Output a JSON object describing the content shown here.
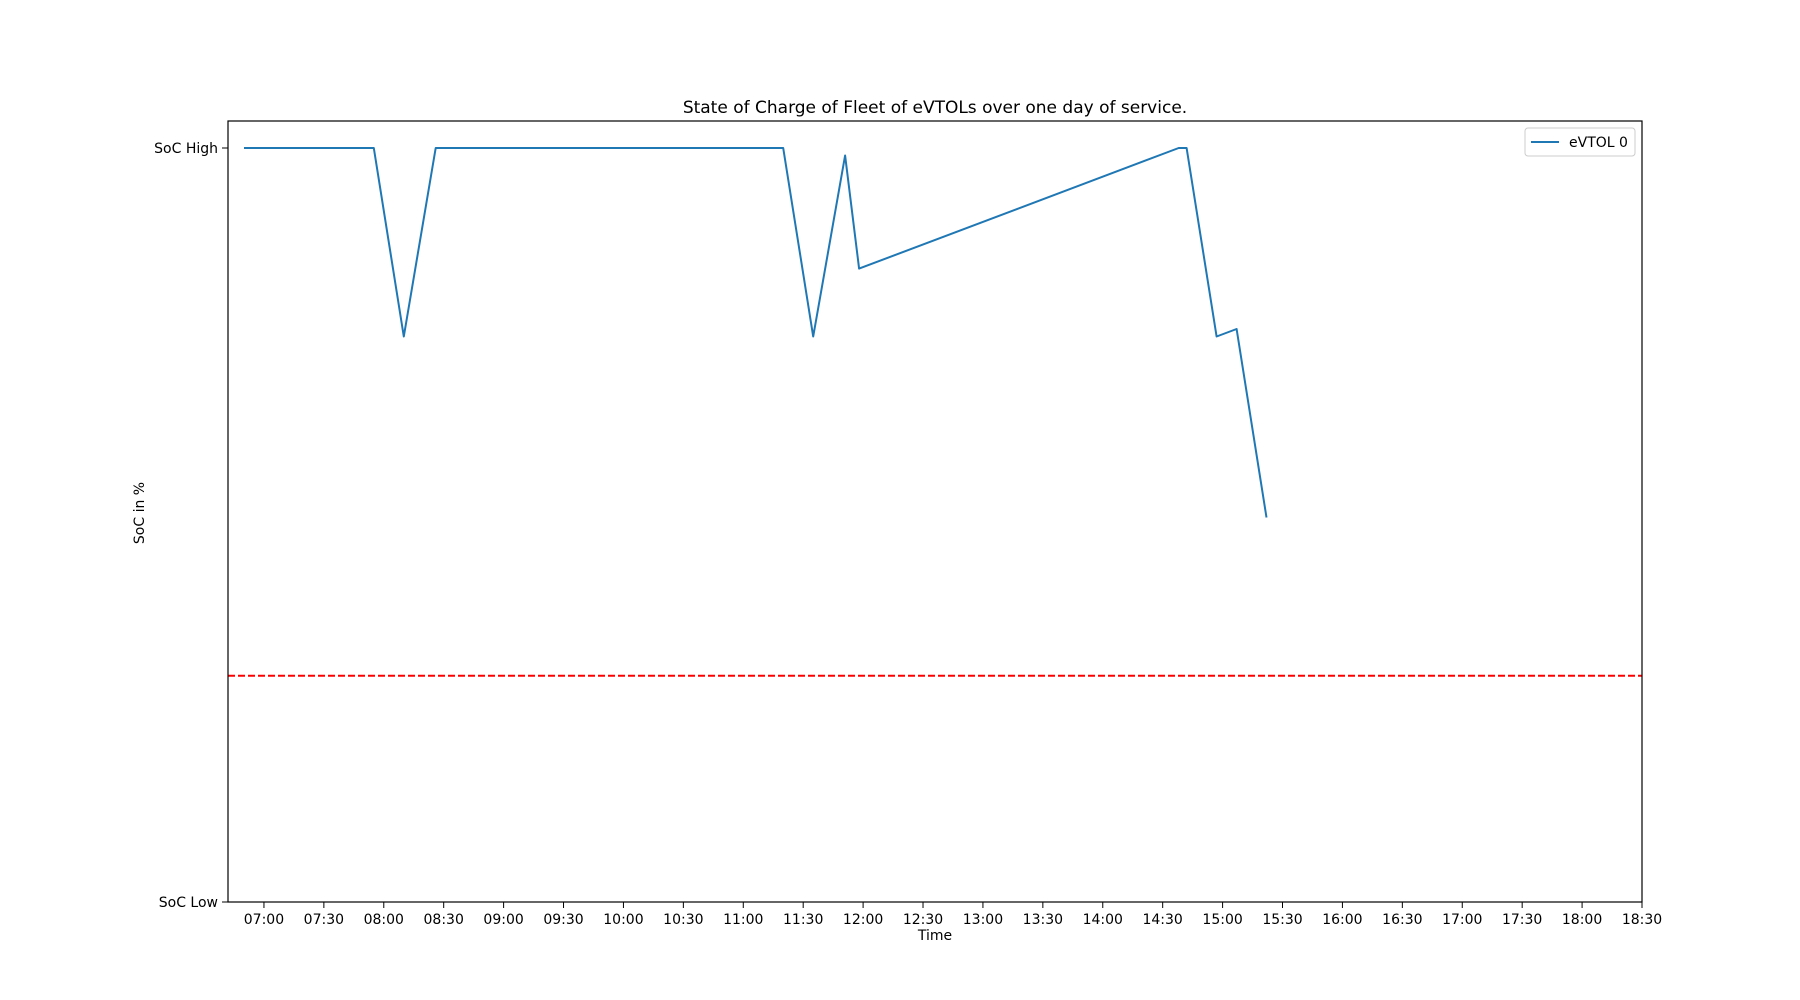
{
  "chart_data": {
    "type": "line",
    "title": "State of Charge of Fleet of eVTOLs over one day of service.",
    "xlabel": "Time",
    "ylabel": "SoC in %",
    "x_tick_labels": [
      "07:00",
      "07:30",
      "08:00",
      "08:30",
      "09:00",
      "09:30",
      "10:00",
      "10:30",
      "11:00",
      "11:30",
      "12:00",
      "12:30",
      "13:00",
      "13:30",
      "14:00",
      "14:30",
      "15:00",
      "15:30",
      "16:00",
      "16:30",
      "17:00",
      "17:30",
      "18:00",
      "18:30"
    ],
    "y_tick_labels": [
      "SoC Low",
      "SoC High"
    ],
    "xlim": [
      "06:42",
      "18:30"
    ],
    "ylim": [
      0,
      100
    ],
    "grid": false,
    "legend_position": "top-right",
    "series": [
      {
        "name": "eVTOL 0",
        "color": "#1f77b4",
        "points": [
          {
            "x": "06:50",
            "y": 100
          },
          {
            "x": "07:55",
            "y": 100
          },
          {
            "x": "08:10",
            "y": 75
          },
          {
            "x": "08:26",
            "y": 100
          },
          {
            "x": "11:20",
            "y": 100
          },
          {
            "x": "11:35",
            "y": 75
          },
          {
            "x": "11:51",
            "y": 99
          },
          {
            "x": "11:58",
            "y": 84
          },
          {
            "x": "14:38",
            "y": 100
          },
          {
            "x": "14:42",
            "y": 100
          },
          {
            "x": "14:57",
            "y": 75
          },
          {
            "x": "15:07",
            "y": 76
          },
          {
            "x": "15:22",
            "y": 51
          }
        ]
      }
    ],
    "reference_lines": [
      {
        "y": 30,
        "color": "#ff0000",
        "style": "dashed"
      }
    ]
  }
}
